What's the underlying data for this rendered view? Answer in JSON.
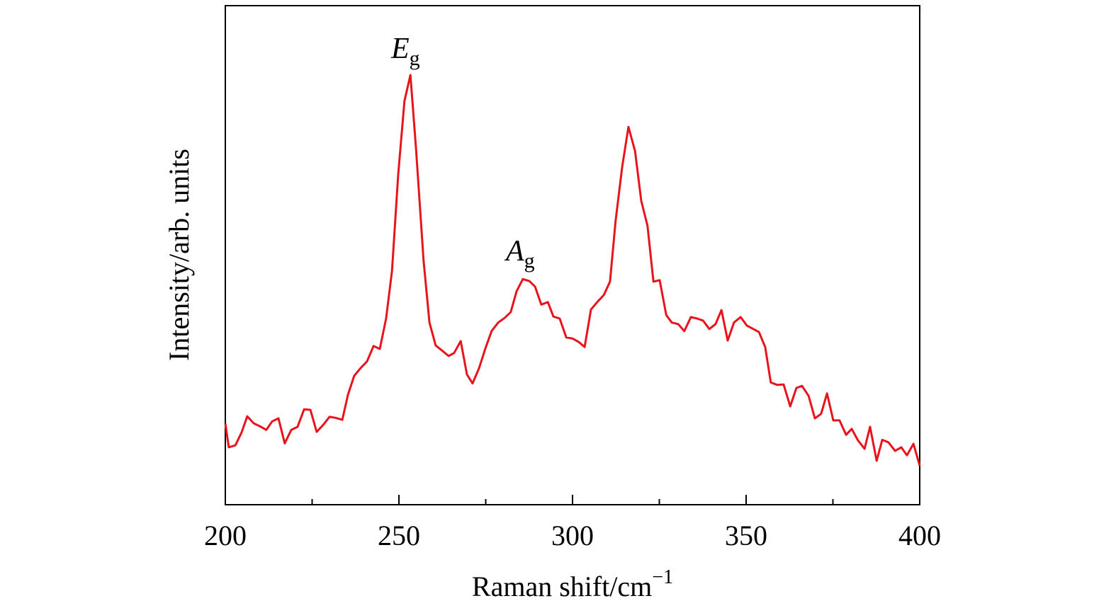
{
  "chart_data": {
    "type": "line",
    "xlabel": "Raman shift/cm",
    "xlabel_sup": "−1",
    "ylabel": "Intensity/arb. units",
    "color": "#e8141c",
    "xlim": [
      200,
      400
    ],
    "xticks": [
      200,
      250,
      300,
      350,
      400
    ],
    "xminor_ticks": [
      225,
      275,
      325,
      375
    ],
    "ylim": [
      0,
      100
    ],
    "annotations": [
      {
        "text": "E",
        "sub": "g"
      },
      {
        "text": "A",
        "sub": "g"
      }
    ],
    "x": [
      200,
      201.0,
      202.9,
      204.7,
      206.3,
      208.2,
      210.0,
      211.8,
      213.5,
      215.3,
      217.1,
      219.0,
      220.8,
      222.7,
      224.5,
      226.3,
      228.2,
      230.0,
      231.8,
      233.7,
      235.3,
      237.1,
      239.0,
      240.8,
      242.7,
      244.5,
      246.3,
      248.0,
      249.8,
      251.6,
      253.3,
      254.9,
      257.1,
      258.8,
      260.6,
      262.4,
      264.3,
      265.9,
      267.8,
      269.6,
      271.2,
      273.1,
      274.9,
      276.7,
      278.6,
      280.4,
      282.2,
      283.9,
      285.7,
      287.6,
      289.2,
      291.0,
      292.9,
      294.5,
      296.3,
      298.2,
      300.0,
      301.8,
      303.5,
      305.3,
      307.1,
      309.0,
      310.8,
      312.4,
      314.3,
      316.1,
      318.0,
      319.8,
      321.6,
      323.3,
      325.1,
      327.0,
      328.6,
      330.4,
      332.2,
      334.1,
      335.9,
      337.6,
      339.4,
      341.2,
      342.9,
      344.7,
      346.5,
      348.4,
      350.2,
      351.8,
      353.7,
      355.5,
      357.1,
      359.0,
      360.8,
      362.7,
      364.5,
      366.1,
      368.0,
      369.8,
      371.6,
      373.3,
      375.1,
      376.9,
      378.8,
      380.4,
      382.2,
      384.1,
      385.7,
      387.6,
      389.2,
      391.0,
      392.9,
      394.7,
      396.3,
      398.2,
      400
    ],
    "values": [
      16.3,
      11.5,
      11.9,
      14.5,
      17.7,
      16.3,
      15.7,
      15.0,
      16.7,
      17.3,
      12.3,
      15.0,
      15.6,
      19.1,
      19.0,
      14.6,
      16.0,
      17.6,
      17.4,
      17.0,
      22.0,
      25.8,
      27.4,
      28.7,
      31.8,
      31.2,
      37.3,
      46.8,
      66.2,
      80.9,
      86.1,
      71.6,
      48.9,
      36.5,
      31.9,
      30.9,
      29.8,
      30.4,
      32.8,
      26.1,
      24.3,
      27.4,
      31.3,
      34.8,
      36.5,
      37.4,
      38.6,
      42.8,
      45.2,
      44.8,
      43.7,
      40.1,
      40.6,
      37.7,
      37.3,
      33.5,
      33.3,
      32.6,
      31.6,
      39.1,
      40.6,
      42.0,
      44.7,
      56.9,
      67.7,
      75.7,
      70.9,
      60.9,
      55.9,
      44.7,
      45.0,
      38.0,
      36.5,
      36.2,
      34.8,
      37.6,
      37.3,
      36.9,
      35.2,
      36.2,
      39.0,
      32.9,
      36.5,
      37.6,
      35.9,
      35.3,
      34.6,
      31.6,
      24.5,
      24.0,
      24.1,
      19.7,
      23.4,
      23.8,
      21.8,
      17.3,
      18.2,
      22.3,
      16.9,
      16.9,
      14.0,
      15.2,
      12.9,
      11.2,
      15.6,
      8.8,
      13.0,
      12.5,
      10.8,
      11.5,
      9.9,
      12.2,
      7.8
    ]
  }
}
